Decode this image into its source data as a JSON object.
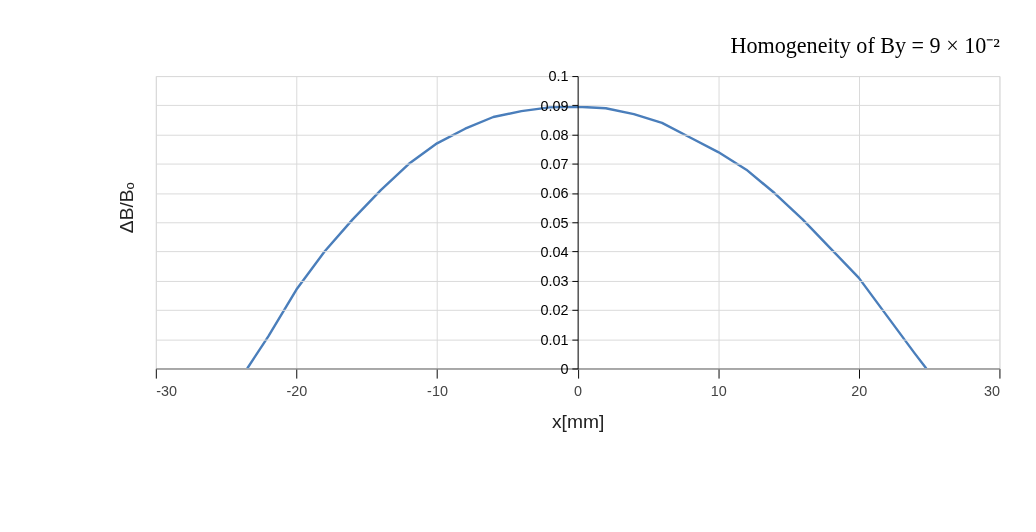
{
  "chart_data": {
    "type": "line",
    "title": "Homogeneity of By = 9 × 10⁻²",
    "xlabel": "x[mm]",
    "ylabel": "ΔB/Bₒ",
    "x": [
      -23.5,
      -22,
      -20,
      -18,
      -16,
      -14,
      -12,
      -10,
      -8,
      -6,
      -4,
      -2,
      0,
      2,
      4,
      6,
      8,
      10,
      12,
      14,
      16,
      18,
      20,
      22,
      24,
      24.8
    ],
    "series": [
      {
        "color": "#4a7ebb",
        "values": [
          0,
          0.011,
          0.027,
          0.04,
          0.051,
          0.061,
          0.07,
          0.077,
          0.082,
          0.086,
          0.088,
          0.0893,
          0.0895,
          0.089,
          0.087,
          0.084,
          0.079,
          0.074,
          0.068,
          0.06,
          0.051,
          0.041,
          0.031,
          0.018,
          0.005,
          0
        ]
      }
    ],
    "xlim": [
      -30,
      30
    ],
    "xticks": [
      -30,
      -20,
      -10,
      0,
      10,
      20,
      30
    ],
    "ylim": [
      0,
      0.1
    ],
    "yticks": [
      0,
      0.01,
      0.02,
      0.03,
      0.04,
      0.05,
      0.06,
      0.07,
      0.08,
      0.09,
      0.1
    ],
    "grid": true,
    "legend": false,
    "marker": "none",
    "line_style": "solid"
  }
}
